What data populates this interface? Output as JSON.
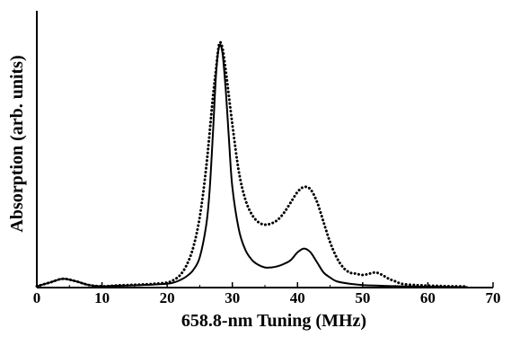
{
  "chart_data": {
    "type": "line",
    "title": "",
    "xlabel": "658.8-nm Tuning (MHz)",
    "ylabel": "Absorption (arb. units)",
    "xlim": [
      0,
      70
    ],
    "ylim": [
      0,
      1.0
    ],
    "x_ticks": [
      "0",
      "10",
      "20",
      "30",
      "40",
      "50",
      "60",
      "70"
    ],
    "grid": false,
    "series": [
      {
        "style": "dotted",
        "color": "#000000",
        "x": [
          0,
          2,
          4,
          6,
          8,
          10,
          12,
          14,
          16,
          18,
          20,
          21,
          22,
          23,
          24,
          25,
          26,
          27,
          27.5,
          28,
          28.5,
          29,
          30,
          31,
          32,
          33,
          34,
          35,
          36,
          37,
          38,
          39,
          40,
          41,
          42,
          43,
          44,
          45,
          46,
          47,
          48,
          49,
          50,
          51,
          52,
          53,
          54,
          55,
          56,
          58,
          60,
          62,
          64,
          66
        ],
        "y": [
          0.005,
          0.02,
          0.035,
          0.025,
          0.01,
          0.005,
          0.008,
          0.01,
          0.012,
          0.015,
          0.02,
          0.03,
          0.05,
          0.09,
          0.16,
          0.28,
          0.48,
          0.75,
          0.87,
          0.97,
          0.95,
          0.86,
          0.65,
          0.46,
          0.35,
          0.29,
          0.26,
          0.25,
          0.255,
          0.27,
          0.3,
          0.34,
          0.38,
          0.4,
          0.39,
          0.34,
          0.26,
          0.18,
          0.12,
          0.08,
          0.06,
          0.055,
          0.05,
          0.055,
          0.06,
          0.05,
          0.035,
          0.025,
          0.015,
          0.01,
          0.008,
          0.006,
          0.005,
          0.004
        ]
      },
      {
        "style": "solid",
        "color": "#000000",
        "x": [
          0,
          2,
          4,
          6,
          8,
          10,
          12,
          14,
          16,
          18,
          20,
          21,
          22,
          23,
          24,
          25,
          26,
          26.5,
          27,
          27.5,
          28,
          28.5,
          29,
          29.5,
          30,
          31,
          32,
          33,
          34,
          35,
          36,
          37,
          38,
          39,
          40,
          41,
          42,
          43,
          44,
          45,
          46,
          48,
          50,
          52,
          54,
          56,
          58,
          60,
          62,
          64,
          66
        ],
        "y": [
          0.005,
          0.02,
          0.035,
          0.025,
          0.01,
          0.005,
          0.007,
          0.008,
          0.01,
          0.012,
          0.015,
          0.02,
          0.03,
          0.045,
          0.07,
          0.12,
          0.25,
          0.38,
          0.6,
          0.85,
          0.96,
          0.93,
          0.78,
          0.58,
          0.4,
          0.23,
          0.15,
          0.11,
          0.09,
          0.08,
          0.08,
          0.085,
          0.095,
          0.11,
          0.14,
          0.155,
          0.14,
          0.1,
          0.06,
          0.04,
          0.025,
          0.015,
          0.01,
          0.008,
          0.006,
          0.005,
          0.004,
          0.003,
          0.003,
          0.002,
          0.002
        ]
      }
    ]
  }
}
